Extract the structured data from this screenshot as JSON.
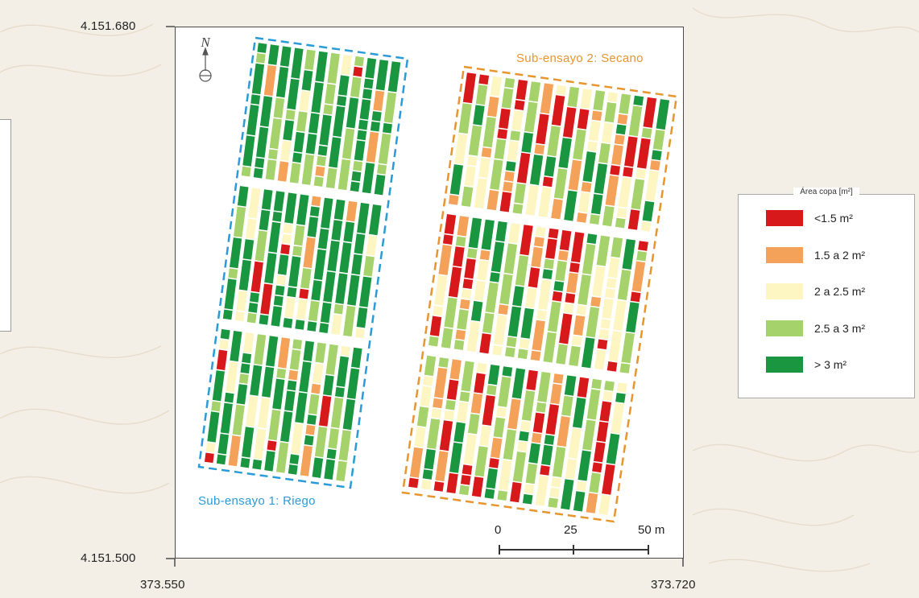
{
  "coordinates": {
    "y_top": "4.151.680",
    "y_bottom": "4.151.500",
    "x_left": "373.550",
    "x_right": "373.720"
  },
  "north_arrow": {
    "letter": "N",
    "icon": "north-arrow-icon"
  },
  "plots": {
    "riego": {
      "label": "Sub-ensayo 1: Riego",
      "color": "#2a9bd8"
    },
    "secano": {
      "label": "Sub-ensayo 2: Secano",
      "color": "#e8952e"
    }
  },
  "scale_bar": {
    "labels": [
      "0",
      "25",
      "50 m"
    ],
    "values_m": [
      0,
      25,
      50
    ]
  },
  "legend": {
    "title": "Área copa [m²]",
    "items": [
      {
        "label": "<1.5 m²",
        "color": "#d7191c"
      },
      {
        "label": "1.5 a 2 m²",
        "color": "#f4a259"
      },
      {
        "label": "2 a 2.5 m²",
        "color": "#fdf6c3"
      },
      {
        "label": "2.5 a 3 m²",
        "color": "#a6d26b"
      },
      {
        "label": "> 3 m²",
        "color": "#1a9641"
      }
    ]
  }
}
